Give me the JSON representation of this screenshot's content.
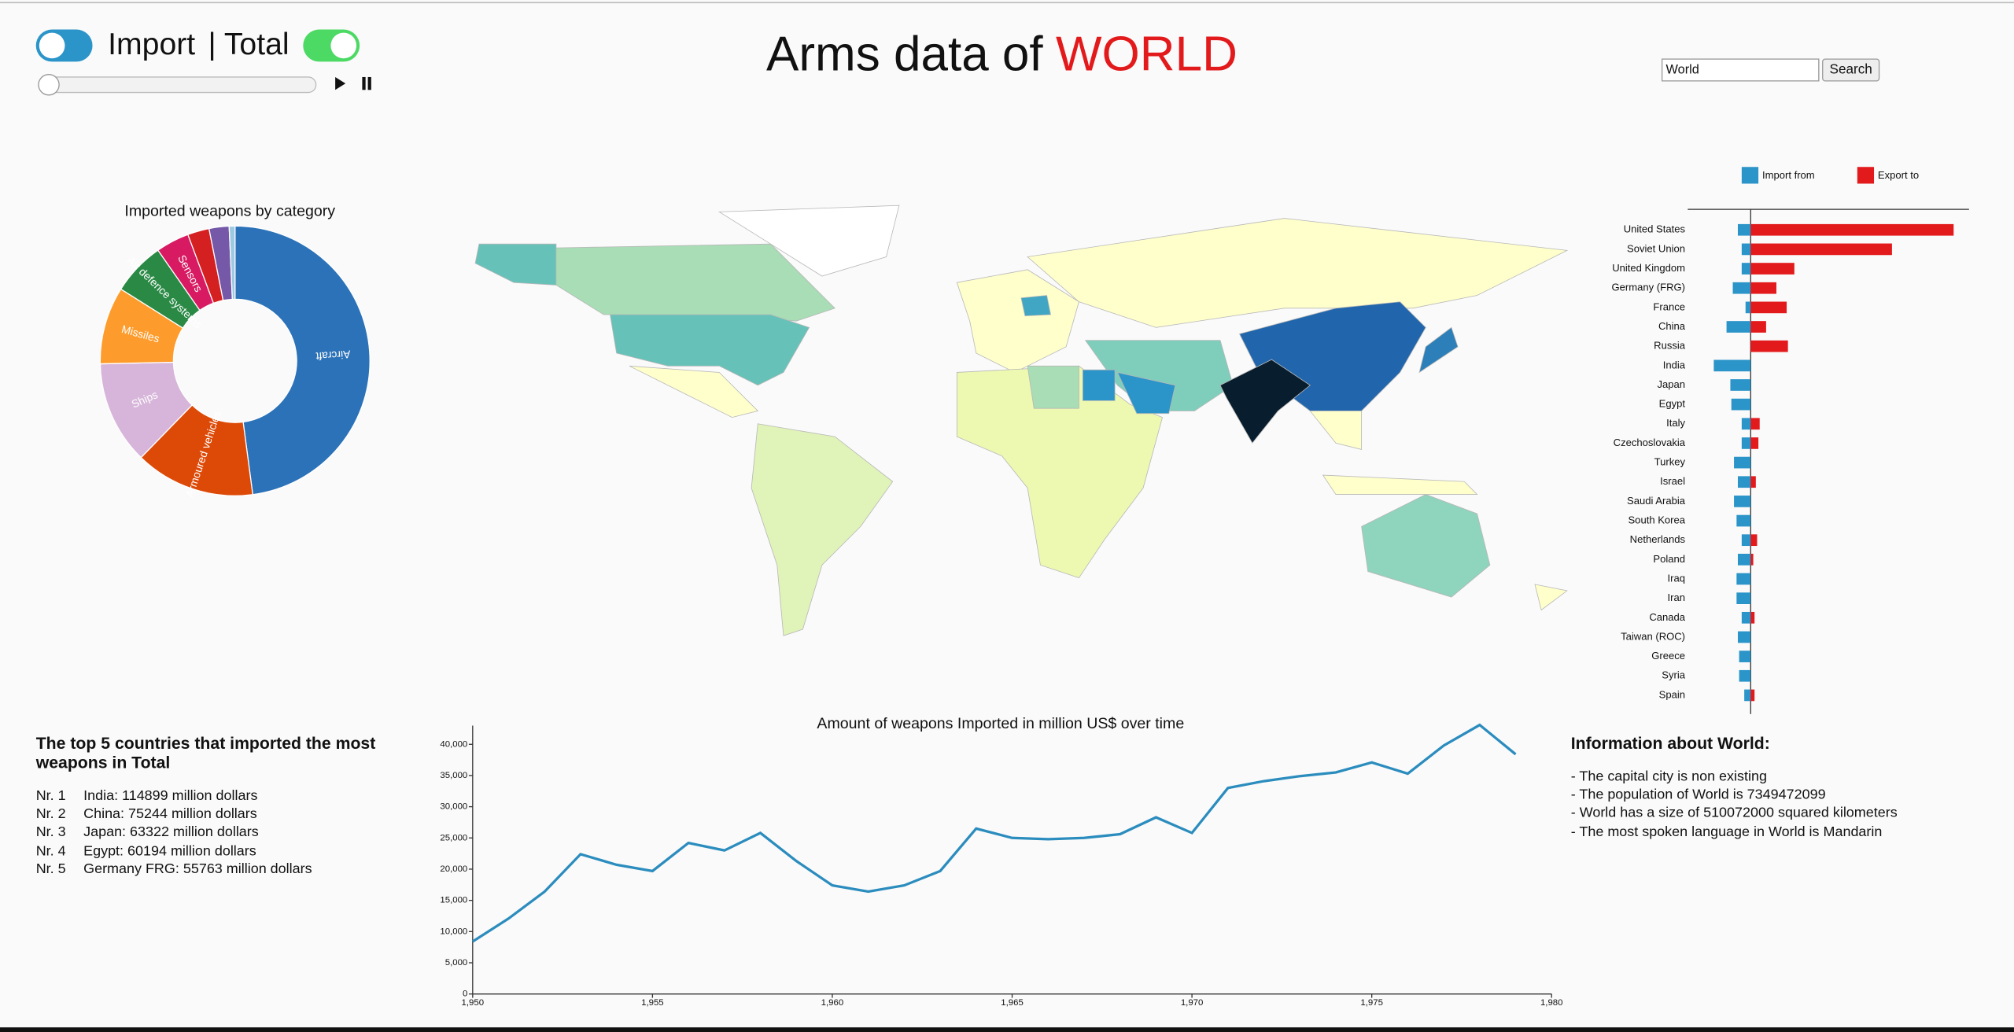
{
  "header": {
    "toggle_left": "Import",
    "toggle_right": "| Total",
    "title": "Arms data of",
    "title_country": "WORLD",
    "search_value": "World",
    "search_button": "Search"
  },
  "chart_data": [
    {
      "type": "pie",
      "title": "Imported weapons by category",
      "categories": [
        "Aircraft",
        "Armoured vehicles",
        "Ships",
        "Missiles",
        "Air defence systems",
        "Sensors",
        null,
        null,
        null
      ],
      "values": [
        48,
        14.4,
        12.4,
        9.3,
        6.4,
        4,
        2.6,
        2.4,
        0.7
      ],
      "colors": [
        "#2c72b8",
        "#dd4a08",
        "#d7b5da",
        "#fd9c2c",
        "#2a8a45",
        "#d81a62",
        "#d42020",
        "#7559a8",
        "#9ecae1"
      ]
    },
    {
      "type": "bar",
      "orientation": "horizontal",
      "categories": [
        "United States",
        "Soviet Union",
        "United Kingdom",
        "Germany (FRG)",
        "France",
        "China",
        "Russia",
        "India",
        "Japan",
        "Egypt",
        "Italy",
        "Czechoslovakia",
        "Turkey",
        "Israel",
        "Saudi Arabia",
        "South Korea",
        "Netherlands",
        "Poland",
        "Iraq",
        "Iran",
        "Canada",
        "Taiwan (ROC)",
        "Greece",
        "Syria",
        "Spain"
      ],
      "series": [
        {
          "name": "Import from",
          "color": "#2b94c8",
          "direction": "left",
          "values": [
            40000,
            28000,
            28000,
            55763,
            16000,
            75244,
            0,
            114899,
            63322,
            60194,
            28000,
            28000,
            52000,
            40000,
            52000,
            44000,
            28000,
            40000,
            44000,
            44000,
            28000,
            40000,
            36000,
            36000,
            20000
          ]
        },
        {
          "name": "Export to",
          "color": "#e31a1c",
          "direction": "right",
          "values": [
            632000,
            440000,
            136000,
            80000,
            112000,
            48000,
            116000,
            0,
            0,
            0,
            28000,
            24000,
            0,
            16000,
            0,
            0,
            20000,
            8000,
            0,
            0,
            12000,
            0,
            0,
            0,
            12000
          ]
        }
      ]
    },
    {
      "type": "line",
      "title": "Amount of weapons Imported in million US$ over time",
      "color": "#2b8cbe",
      "x": [
        1950,
        1951,
        1952,
        1953,
        1954,
        1955,
        1956,
        1957,
        1958,
        1959,
        1960,
        1961,
        1962,
        1963,
        1964,
        1965,
        1966,
        1967,
        1968,
        1969,
        1970,
        1971,
        1972,
        1973,
        1974,
        1975,
        1976,
        1977,
        1978,
        1979
      ],
      "values": [
        8400,
        12100,
        16400,
        22400,
        20700,
        19700,
        24200,
        23000,
        25800,
        21300,
        17400,
        16400,
        17400,
        19700,
        26500,
        25000,
        24800,
        25000,
        25600,
        28300,
        25800,
        33000,
        34100,
        34900,
        35500,
        37100,
        35300,
        39800,
        43100,
        38400
      ],
      "xlim": [
        1950,
        1980
      ],
      "xticks": [
        {
          "value": 1950,
          "label": "1,950"
        },
        {
          "value": 1955,
          "label": "1,955"
        },
        {
          "value": 1960,
          "label": "1,960"
        },
        {
          "value": 1965,
          "label": "1,965"
        },
        {
          "value": 1970,
          "label": "1,970"
        },
        {
          "value": 1975,
          "label": "1,975"
        },
        {
          "value": 1980,
          "label": "1,980"
        }
      ],
      "ylim": [
        0,
        43000
      ],
      "yticks": [
        0,
        {
          "value": 5000,
          "label": "5,000"
        },
        {
          "value": 10000,
          "label": "10,000"
        },
        {
          "value": 15000,
          "label": "15,000"
        },
        {
          "value": 20000,
          "label": "20,000"
        },
        {
          "value": 25000,
          "label": "25,000"
        },
        {
          "value": 30000,
          "label": "30,000"
        },
        {
          "value": 35000,
          "label": "35,000"
        },
        {
          "value": 40000,
          "label": "40,000"
        }
      ]
    }
  ],
  "top_countries": {
    "heading": "The top 5 countries that imported the most weapons in Total",
    "items": [
      {
        "rank": "Nr. 1",
        "text": "India: 114899 million dollars"
      },
      {
        "rank": "Nr. 2",
        "text": "China: 75244 million dollars"
      },
      {
        "rank": "Nr. 3",
        "text": "Japan: 63322 million dollars"
      },
      {
        "rank": "Nr. 4",
        "text": "Egypt: 60194 million dollars"
      },
      {
        "rank": "Nr. 5",
        "text": "Germany FRG: 55763 million dollars"
      }
    ]
  },
  "info": {
    "heading": "Information about World:",
    "lines": [
      "- The capital city is non existing",
      "- The population of World is 7349472099",
      "- World has a size of 510072000 squared kilometers",
      "- The most spoken language in World is Mandarin"
    ]
  }
}
